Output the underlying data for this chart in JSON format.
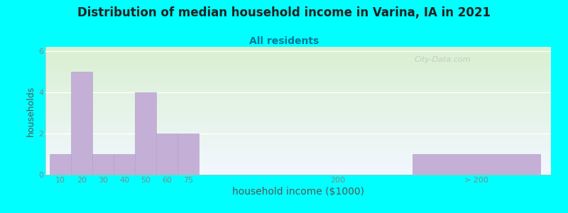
{
  "title": "Distribution of median household income in Varina, IA in 2021",
  "subtitle": "All residents",
  "xlabel": "household income ($1000)",
  "ylabel": "households",
  "background_outer": "#00FFFF",
  "bar_color": "#c4afd6",
  "bar_edge_color": "#b09ec8",
  "title_color": "#222222",
  "subtitle_color": "#007799",
  "axis_label_color": "#555555",
  "tick_label_color": "#888888",
  "watermark": "City-Data.com",
  "values": [
    1,
    5,
    1,
    1,
    4,
    2,
    2,
    0,
    1
  ],
  "bar_lefts": [
    0,
    1,
    2,
    3,
    4,
    5,
    6,
    13,
    17
  ],
  "bar_widths": [
    1,
    1,
    1,
    1,
    1,
    1,
    1,
    1,
    6
  ],
  "tick_positions": [
    0.5,
    1.5,
    2.5,
    3.5,
    4.5,
    5.5,
    6.5,
    13.5,
    20
  ],
  "tick_labels": [
    "10",
    "20",
    "30",
    "40",
    "50",
    "60",
    "75",
    "200",
    "> 200"
  ],
  "xlim": [
    -0.2,
    23.5
  ],
  "ylim": [
    0,
    6.2
  ],
  "yticks": [
    0,
    2,
    4,
    6
  ],
  "title_fontsize": 12,
  "subtitle_fontsize": 10,
  "xlabel_fontsize": 10,
  "ylabel_fontsize": 9
}
